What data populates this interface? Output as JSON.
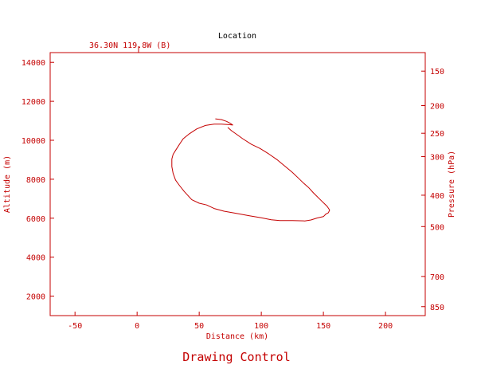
{
  "colors": {
    "plot": "#c40000",
    "label": "#000000",
    "background": "#ffffff"
  },
  "header": {
    "title": "Location",
    "location_label": "36.30N 119.8W (B)"
  },
  "footer": {
    "control_label": "Drawing Control"
  },
  "chart_data": {
    "type": "line",
    "title": "Location",
    "xlabel": "Distance (km)",
    "ylabel": "Altitude (m)",
    "y2label": "Pressure (hPa)",
    "xlim": [
      -70,
      232
    ],
    "ylim": [
      1000,
      14500
    ],
    "x_ticks": [
      -50,
      0,
      50,
      100,
      150,
      200
    ],
    "y_ticks": [
      2000,
      4000,
      6000,
      8000,
      10000,
      12000,
      14000
    ],
    "pressure_ticks": [
      {
        "label": "150",
        "altitude": 13550
      },
      {
        "label": "200",
        "altitude": 11780
      },
      {
        "label": "250",
        "altitude": 10360
      },
      {
        "label": "300",
        "altitude": 9160
      },
      {
        "label": "400",
        "altitude": 7180
      },
      {
        "label": "500",
        "altitude": 5570
      },
      {
        "label": "700",
        "altitude": 3010
      },
      {
        "label": "850",
        "altitude": 1460
      }
    ],
    "grid": false,
    "series": [
      {
        "x": [
          63,
          68,
          72,
          75,
          77,
          74,
          68,
          62,
          55,
          48,
          42,
          37,
          35,
          33,
          31,
          29,
          28,
          28,
          29,
          31,
          34,
          38,
          44,
          50,
          56,
          62,
          70,
          80,
          90,
          100,
          108,
          115,
          125,
          135,
          140,
          145,
          150,
          152,
          154,
          155,
          153,
          148,
          142,
          138,
          134,
          130,
          125,
          120,
          113,
          106,
          99,
          92,
          85,
          80,
          76,
          73
        ],
        "y": [
          11100,
          11060,
          10970,
          10870,
          10780,
          10800,
          10830,
          10830,
          10760,
          10580,
          10330,
          10070,
          9880,
          9680,
          9480,
          9280,
          9040,
          8650,
          8300,
          7950,
          7690,
          7370,
          6950,
          6770,
          6680,
          6500,
          6360,
          6250,
          6130,
          6020,
          5920,
          5880,
          5880,
          5860,
          5910,
          6010,
          6080,
          6210,
          6280,
          6420,
          6610,
          6920,
          7300,
          7580,
          7800,
          8050,
          8350,
          8620,
          8990,
          9300,
          9580,
          9790,
          10080,
          10310,
          10490,
          10660
        ]
      }
    ]
  }
}
